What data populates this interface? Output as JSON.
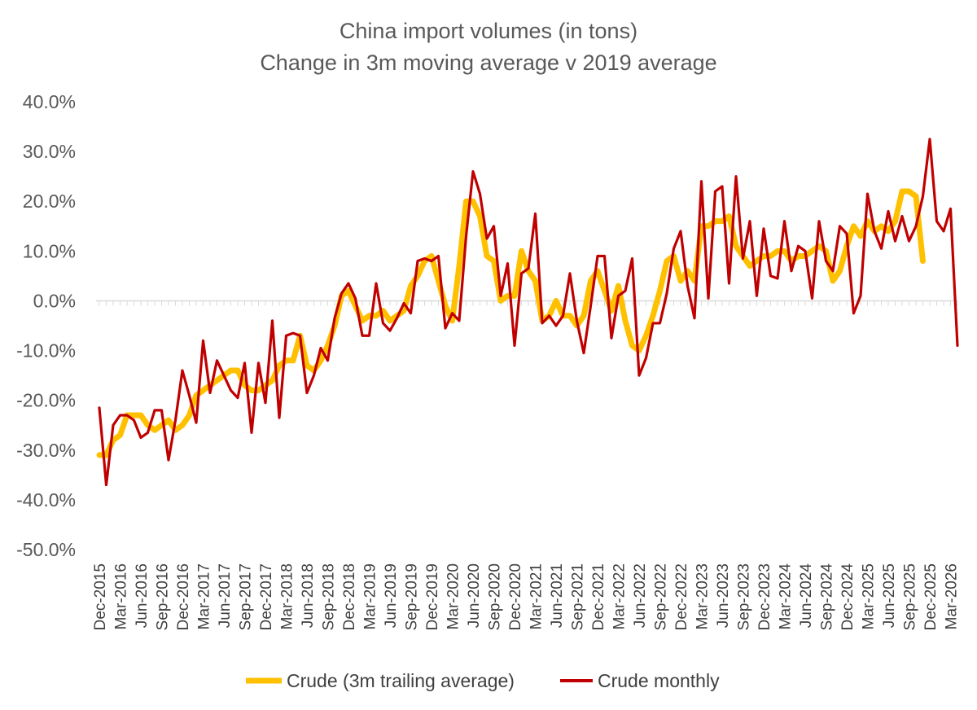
{
  "chart_data": {
    "type": "line",
    "title": "China import volumes (in tons)",
    "subtitle": "Change in 3m moving average v 2019 average",
    "y_tick_labels": [
      "40.0%",
      "30.0%",
      "20.0%",
      "10.0%",
      "0.0%",
      "-10.0%",
      "-20.0%",
      "-30.0%",
      "-40.0%",
      "-50.0%"
    ],
    "ylim": [
      -50,
      40
    ],
    "y_unit": "percent",
    "x_start": "2015-12",
    "x_end": "2026-04",
    "x_tick_labels": [
      "Dec-2015",
      "Mar-2016",
      "Jun-2016",
      "Sep-2016",
      "Dec-2016",
      "Mar-2017",
      "Jun-2017",
      "Sep-2017",
      "Dec-2017",
      "Mar-2018",
      "Jun-2018",
      "Sep-2018",
      "Dec-2018",
      "Mar-2019",
      "Jun-2019",
      "Sep-2019",
      "Dec-2019",
      "Mar-2020",
      "Jun-2020",
      "Sep-2020",
      "Dec-2020",
      "Mar-2021",
      "Jun-2021",
      "Sep-2021",
      "Dec-2021",
      "Mar-2022",
      "Jun-2022",
      "Sep-2022",
      "Dec-2022",
      "Mar-2023",
      "Jun-2023",
      "Sep-2023",
      "Dec-2023",
      "Mar-2024",
      "Jun-2024",
      "Sep-2024",
      "Dec-2024",
      "Mar-2025",
      "Jun-2025",
      "Sep-2025",
      "Dec-2025",
      "Mar-2026"
    ],
    "grid": false,
    "legend_position": "bottom",
    "series": [
      {
        "name": "Crude (3m trailing average)",
        "color": "#FFC000",
        "values": [
          -31,
          -31,
          -28,
          -27,
          -23,
          -23,
          -23,
          -25,
          -26,
          -25,
          -24,
          -26,
          -25,
          -23,
          -19,
          -18,
          -17,
          -16,
          -15,
          -14,
          -14,
          -17,
          -18,
          -18,
          -17,
          -16,
          -13,
          -12,
          -12,
          -7,
          -13,
          -14,
          -12,
          -9,
          -5,
          1,
          2,
          -1,
          -4,
          -3,
          -3,
          -2,
          -4,
          -3,
          -2,
          3,
          5,
          8,
          9,
          4,
          -1,
          -4,
          7,
          20,
          20,
          17,
          9,
          8,
          0,
          1,
          1,
          10,
          6,
          4,
          -4,
          -3,
          0,
          -3,
          -3,
          -5,
          -3,
          4,
          6,
          2,
          -2,
          3,
          -4,
          -9,
          -10,
          -7,
          -3,
          2,
          8,
          9,
          4,
          6,
          4,
          15,
          15,
          16,
          16,
          17,
          11,
          9,
          7,
          8,
          9,
          9,
          10,
          10,
          8,
          9,
          9,
          10,
          11,
          10,
          4,
          6,
          11,
          15,
          13,
          16,
          14,
          15,
          14,
          16,
          22,
          22,
          21,
          8
        ]
      },
      {
        "name": "Crude monthly",
        "color": "#C00000",
        "values": [
          -21.5,
          -37,
          -25,
          -23,
          -23,
          -24,
          -27.5,
          -26.5,
          -22,
          -22,
          -32,
          -24,
          -14,
          -19,
          -24.5,
          -8,
          -18.5,
          -12,
          -15,
          -18,
          -19.5,
          -12.5,
          -26.5,
          -12.5,
          -20.5,
          -4,
          -23.5,
          -7,
          -6.5,
          -7,
          -18.5,
          -15,
          -9.5,
          -12,
          -3.5,
          1.5,
          3.5,
          0.5,
          -7,
          -7,
          3.5,
          -4.5,
          -6,
          -3.5,
          -0.5,
          -2.5,
          8,
          8.5,
          8,
          9,
          -5.5,
          -2.5,
          -4,
          13,
          26,
          21.5,
          12.5,
          15,
          1,
          7.5,
          -9,
          5.5,
          6.5,
          17.5,
          -4.5,
          -3,
          -5,
          -3,
          5.5,
          -4,
          -10.5,
          -1,
          9,
          9,
          -7.5,
          1,
          2,
          8.5,
          -15,
          -11.5,
          -4.5,
          -4.5,
          1.5,
          10.5,
          14,
          3,
          -3.5,
          24,
          0.5,
          22,
          23,
          3.5,
          25,
          8.5,
          16,
          1,
          14.5,
          5,
          4.5,
          16,
          6,
          11,
          10,
          0.5,
          16,
          8,
          6,
          15,
          13.5,
          -2.5,
          1,
          21.5,
          14,
          10.5,
          18,
          12,
          17,
          12,
          15,
          21,
          32.5,
          16,
          14,
          18.5,
          -9
        ]
      }
    ]
  }
}
